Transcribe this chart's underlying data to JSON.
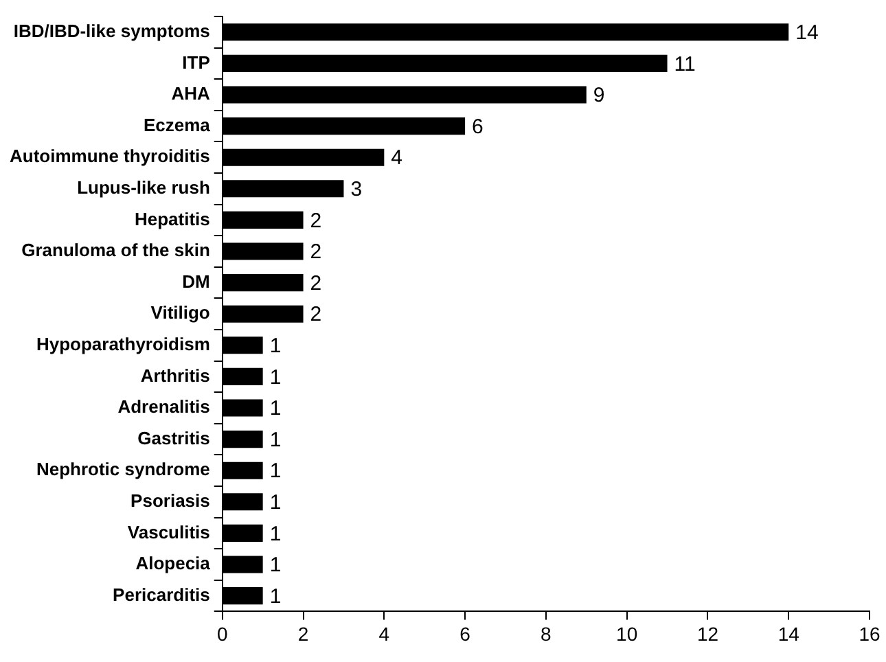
{
  "chart_data": {
    "type": "bar",
    "orientation": "horizontal",
    "categories": [
      "IBD/IBD-like symptoms",
      "ITP",
      "AHA",
      "Eczema",
      "Autoimmune thyroiditis",
      "Lupus-like rush",
      "Hepatitis",
      "Granuloma of the skin",
      "DM",
      "Vitiligo",
      "Hypoparathyroidism",
      "Arthritis",
      "Adrenalitis",
      "Gastritis",
      "Nephrotic syndrome",
      "Psoriasis",
      "Vasculitis",
      "Alopecia",
      "Pericarditis"
    ],
    "values": [
      14,
      11,
      9,
      6,
      4,
      3,
      2,
      2,
      2,
      2,
      1,
      1,
      1,
      1,
      1,
      1,
      1,
      1,
      1
    ],
    "color": "#000000",
    "xlim": [
      0,
      16
    ],
    "xticks": [
      0,
      2,
      4,
      6,
      8,
      10,
      12,
      14,
      16
    ],
    "grid": false,
    "legend": false,
    "data_labels": true
  }
}
